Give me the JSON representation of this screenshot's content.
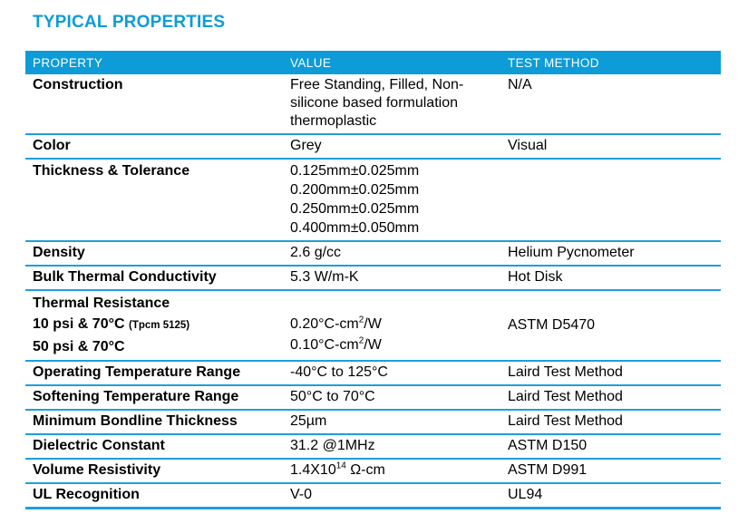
{
  "title": "TYPICAL PROPERTIES",
  "colors": {
    "accent": "#0d9cd8",
    "separator_line": "#1e9fd9",
    "header_text": "#ffffff",
    "body_text": "#000000"
  },
  "table": {
    "columns": [
      "PROPERTY",
      "VALUE",
      "TEST METHOD"
    ],
    "rows": [
      {
        "id": "construction",
        "property": [
          "Construction"
        ],
        "value": [
          "Free Standing, Filled, Non-silicone based formulation thermoplastic"
        ],
        "test": "N/A"
      },
      {
        "id": "color",
        "property": [
          "Color"
        ],
        "value": [
          "Grey"
        ],
        "test": "Visual"
      },
      {
        "id": "thickness-tolerance",
        "property": [
          "Thickness & Tolerance"
        ],
        "value": [
          "0.125mm±0.025mm",
          "0.200mm±0.025mm",
          "0.250mm±0.025mm",
          "0.400mm±0.050mm"
        ],
        "test": ""
      },
      {
        "id": "density",
        "property": [
          "Density"
        ],
        "value": [
          "2.6 g/cc"
        ],
        "test": "Helium Pycnometer"
      },
      {
        "id": "bulk-thermal-conductivity",
        "property": [
          "Bulk Thermal Conductivity"
        ],
        "value": [
          "5.3 W/m-K"
        ],
        "test": "Hot Disk"
      },
      {
        "id": "thermal-resistance",
        "property": [
          "Thermal Resistance",
          "10 psi & 70°C ~{(Tpcm 5125)}",
          "50 psi & 70°C"
        ],
        "value": [
          "0.20°C-cm^{2}/W",
          "0.10°C-cm^{2}/W"
        ],
        "test": "ASTM D5470"
      },
      {
        "id": "operating-temperature-range",
        "property": [
          "Operating Temperature Range"
        ],
        "value": [
          "-40°C to 125°C"
        ],
        "test": "Laird Test Method"
      },
      {
        "id": "softening-temperature-range",
        "property": [
          "Softening Temperature Range"
        ],
        "value": [
          "50°C to 70°C"
        ],
        "test": "Laird Test Method"
      },
      {
        "id": "minimum-bondline-thickness",
        "property": [
          "Minimum Bondline Thickness"
        ],
        "value": [
          "25µm"
        ],
        "test": "Laird Test Method"
      },
      {
        "id": "dielectric-constant",
        "property": [
          "Dielectric Constant"
        ],
        "value": [
          "31.2 @1MHz"
        ],
        "test": "ASTM D150"
      },
      {
        "id": "volume-resistivity",
        "property": [
          "Volume Resistivity"
        ],
        "value": [
          "1.4X10^{14} Ω-cm"
        ],
        "test": "ASTM D991"
      },
      {
        "id": "ul-recognition",
        "property": [
          "UL Recognition"
        ],
        "value": [
          "V-0"
        ],
        "test": "UL94"
      }
    ]
  }
}
